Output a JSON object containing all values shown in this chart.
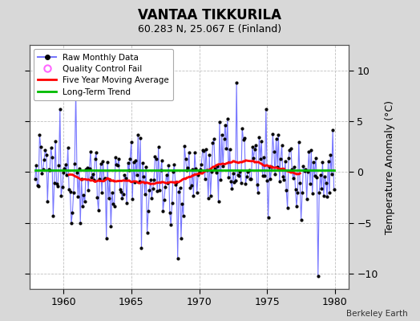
{
  "title": "VANTAA TIKKURILA",
  "subtitle": "60.283 N, 25.067 E (Finland)",
  "ylabel": "Temperature Anomaly (°C)",
  "credit": "Berkeley Earth",
  "xlim": [
    1957.5,
    1981.0
  ],
  "ylim": [
    -11.5,
    12.5
  ],
  "yticks": [
    -10,
    -5,
    0,
    5,
    10
  ],
  "xticks": [
    1960,
    1965,
    1970,
    1975,
    1980
  ],
  "background_color": "#d8d8d8",
  "plot_bg_color": "#ffffff",
  "grid_color": "#c0c0c0",
  "raw_line_color": "#7777ff",
  "raw_marker_color": "#000000",
  "moving_avg_color": "#ff0000",
  "trend_color": "#00bb00",
  "seed": 42,
  "n_months": 265,
  "start_year": 1957.917
}
